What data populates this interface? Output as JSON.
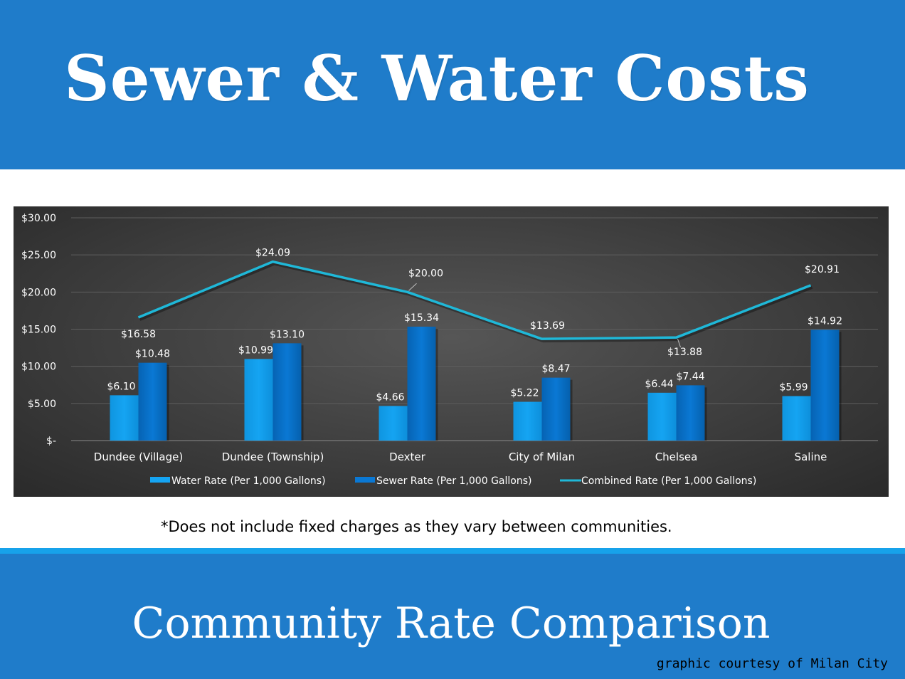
{
  "header": {
    "title": "Sewer & Water Costs"
  },
  "footer": {
    "subtitle": "Community Rate Comparison",
    "credit": "graphic courtesy of Milan City"
  },
  "footnote": "*Does not include fixed charges as they vary between communities.",
  "colors": {
    "banner": "#1f7cca",
    "divider": "#17a2ea",
    "water": "#15a4f2",
    "sewer": "#0a78d4",
    "combined": "#1fb8d8"
  },
  "chart_data": {
    "type": "bar",
    "categories": [
      "Dundee (Village)",
      "Dundee (Township)",
      "Dexter",
      "City of Milan",
      "Chelsea",
      "Saline"
    ],
    "series": [
      {
        "name": "Water Rate (Per 1,000 Gallons)",
        "type": "bar",
        "values": [
          6.1,
          10.99,
          4.66,
          5.22,
          6.44,
          5.99
        ],
        "labels": [
          "$6.10",
          "$10.99",
          "$4.66",
          "$5.22",
          "$6.44",
          "$5.99"
        ]
      },
      {
        "name": "Sewer Rate (Per 1,000 Gallons)",
        "type": "bar",
        "values": [
          10.48,
          13.1,
          15.34,
          8.47,
          7.44,
          14.92
        ],
        "labels": [
          "$10.48",
          "$13.10",
          "$15.34",
          "$8.47",
          "$7.44",
          "$14.92"
        ]
      },
      {
        "name": "Combined Rate (Per 1,000 Gallons)",
        "type": "line",
        "values": [
          16.58,
          24.09,
          20.0,
          13.69,
          13.88,
          20.91
        ],
        "labels": [
          "$16.58",
          "$24.09",
          "$20.00",
          "$13.69",
          "$13.88",
          "$20.91"
        ]
      }
    ],
    "y_ticks": [
      {
        "value": 0,
        "label": "$-"
      },
      {
        "value": 5,
        "label": "$5.00"
      },
      {
        "value": 10,
        "label": "$10.00"
      },
      {
        "value": 15,
        "label": "$15.00"
      },
      {
        "value": 20,
        "label": "$20.00"
      },
      {
        "value": 25,
        "label": "$25.00"
      },
      {
        "value": 30,
        "label": "$30.00"
      }
    ],
    "ylim": [
      0,
      30
    ],
    "grid": true,
    "legend": "bottom",
    "xlabel": "",
    "ylabel": ""
  }
}
